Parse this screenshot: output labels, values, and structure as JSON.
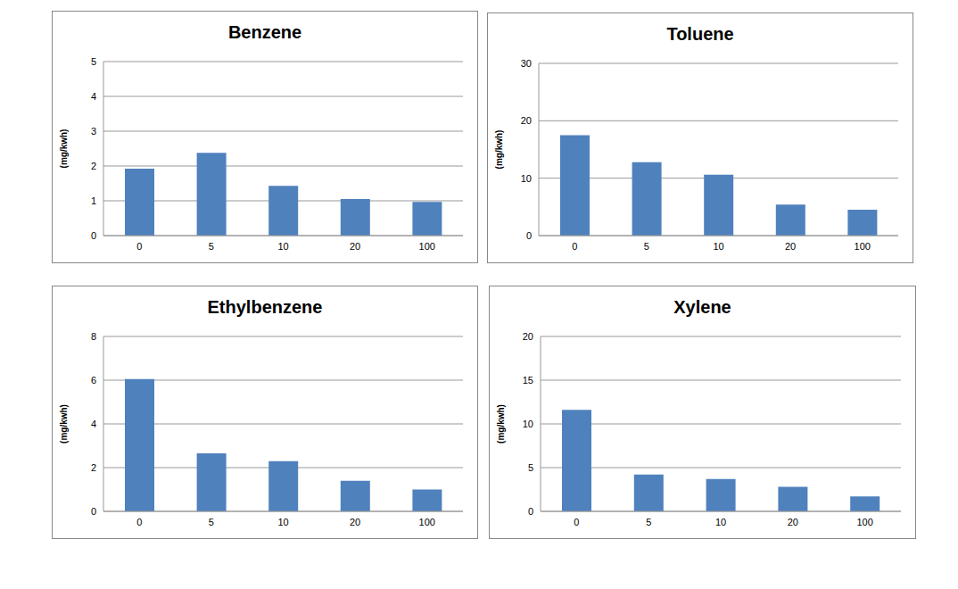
{
  "chart_data": [
    {
      "type": "bar",
      "title": "Benzene",
      "ylabel": "(mg/kwh)",
      "categories": [
        "0",
        "5",
        "10",
        "20",
        "100"
      ],
      "values": [
        1.92,
        2.38,
        1.43,
        1.05,
        0.97
      ],
      "color": "#4f81bd",
      "ylim": [
        0,
        5
      ],
      "yticks": [
        0,
        1,
        2,
        3,
        4,
        5
      ],
      "grid": true
    },
    {
      "type": "bar",
      "title": "Toluene",
      "ylabel": "(mg/kwh)",
      "categories": [
        "0",
        "5",
        "10",
        "20",
        "100"
      ],
      "values": [
        17.5,
        12.8,
        10.6,
        5.4,
        4.5
      ],
      "color": "#4f81bd",
      "ylim": [
        0,
        30
      ],
      "yticks": [
        0,
        10,
        20,
        30
      ],
      "grid": true
    },
    {
      "type": "bar",
      "title": "Ethylbenzene",
      "ylabel": "(mg/kwh)",
      "categories": [
        "0",
        "5",
        "10",
        "20",
        "100"
      ],
      "values": [
        6.05,
        2.65,
        2.3,
        1.4,
        1.0
      ],
      "color": "#4f81bd",
      "ylim": [
        0,
        8
      ],
      "yticks": [
        0,
        2,
        4,
        6,
        8
      ],
      "grid": true
    },
    {
      "type": "bar",
      "title": "Xylene",
      "ylabel": "(mg/kwh)",
      "categories": [
        "0",
        "5",
        "10",
        "20",
        "100"
      ],
      "values": [
        11.6,
        4.2,
        3.7,
        2.8,
        1.7
      ],
      "color": "#4f81bd",
      "ylim": [
        0,
        20
      ],
      "yticks": [
        0,
        5,
        10,
        15,
        20
      ],
      "grid": true
    }
  ]
}
